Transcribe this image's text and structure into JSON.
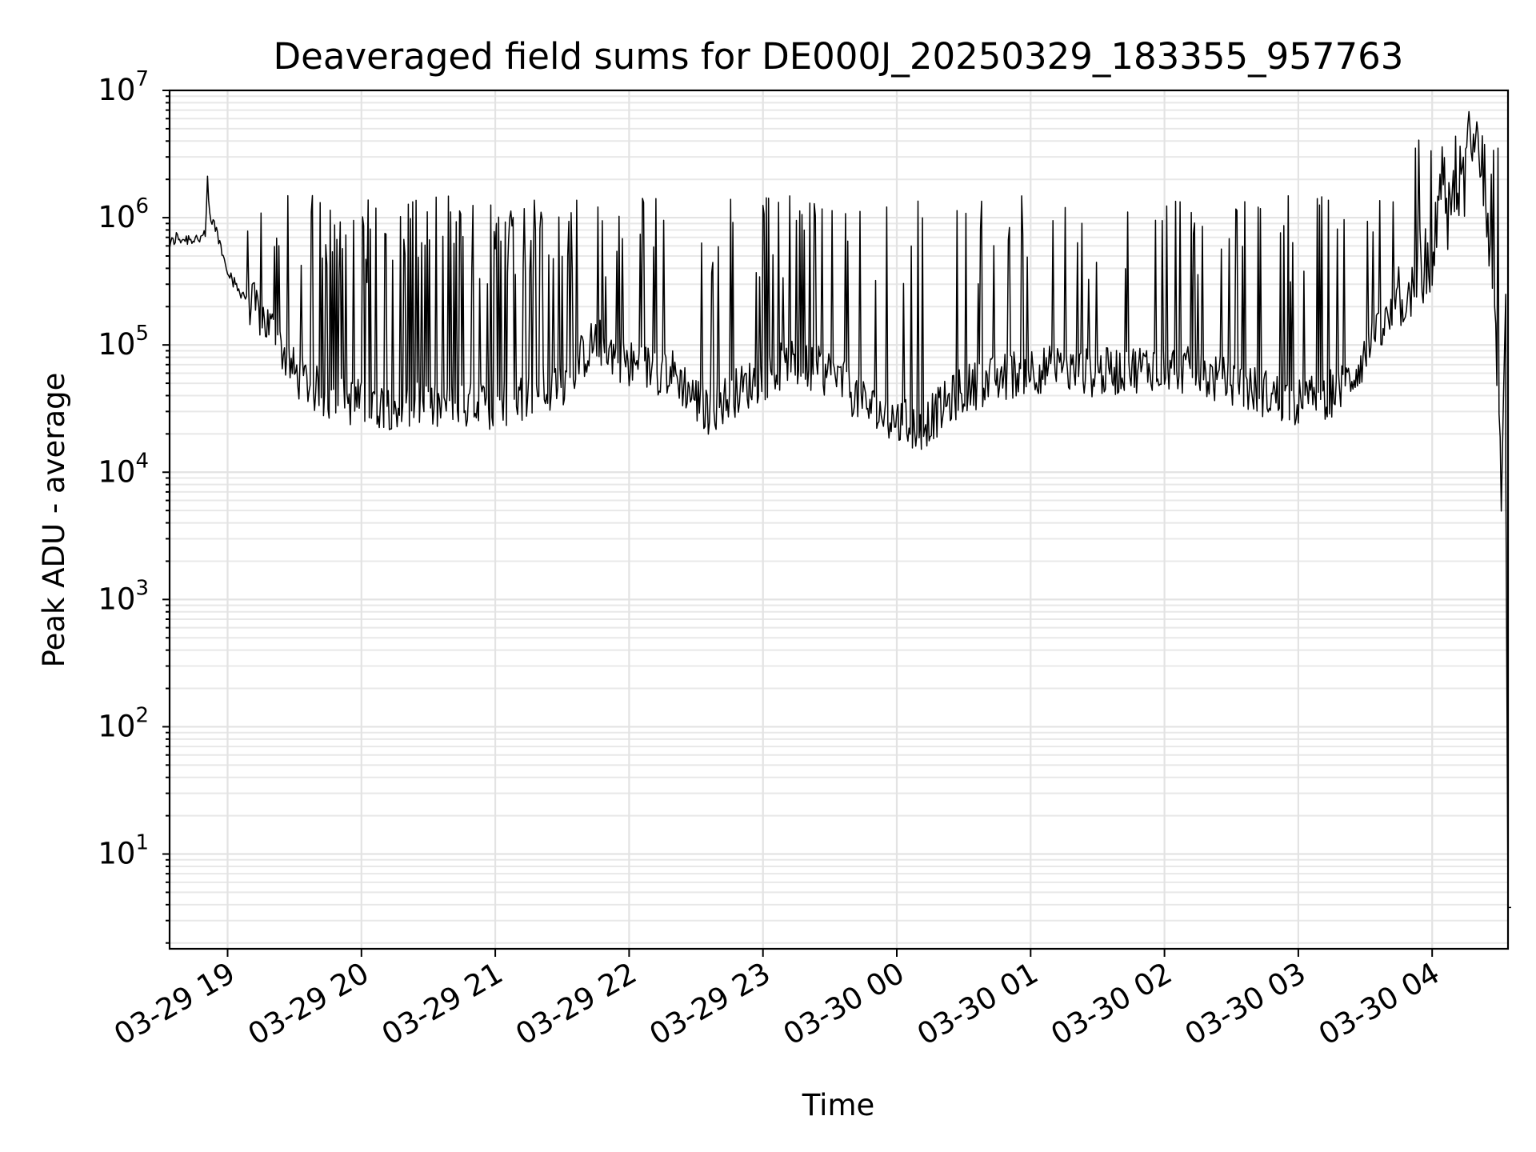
{
  "chart_data": {
    "type": "line",
    "title": "Deaveraged field sums for DE000J_20250329_183355_957763",
    "xlabel": "Time",
    "ylabel": "Peak ADU - average",
    "yscale": "log",
    "ylim": [
      1.8,
      10000000
    ],
    "xlim": [
      "2025-03-29 18:34",
      "2025-03-30 04:34"
    ],
    "grid": true,
    "legend": "none",
    "line_color": "#000000",
    "x_ticks": [
      "03-29 19",
      "03-29 20",
      "03-29 21",
      "03-29 22",
      "03-29 23",
      "03-30 00",
      "03-30 01",
      "03-30 02",
      "03-30 03",
      "03-30 04"
    ],
    "y_ticks": [
      {
        "base": "10",
        "exp": "1",
        "value": 10
      },
      {
        "base": "10",
        "exp": "2",
        "value": 100
      },
      {
        "base": "10",
        "exp": "3",
        "value": 1000
      },
      {
        "base": "10",
        "exp": "4",
        "value": 10000
      },
      {
        "base": "10",
        "exp": "5",
        "value": 100000
      },
      {
        "base": "10",
        "exp": "6",
        "value": 1000000
      },
      {
        "base": "10",
        "exp": "7",
        "value": 10000000
      }
    ],
    "series": [
      {
        "points": [
          [
            "2025-03-29 18:34",
            600000
          ],
          [
            "2025-03-29 18:37",
            700000
          ],
          [
            "2025-03-29 18:40",
            680000
          ],
          [
            "2025-03-29 18:45",
            690000
          ],
          [
            "2025-03-29 18:50",
            700000
          ],
          [
            "2025-03-29 18:51",
            1900000
          ],
          [
            "2025-03-29 18:52",
            1000000
          ],
          [
            "2025-03-29 18:55",
            800000
          ],
          [
            "2025-03-29 18:58",
            500000
          ],
          [
            "2025-03-29 19:03",
            300000
          ],
          [
            "2025-03-29 19:10",
            220000
          ],
          [
            "2025-03-29 19:20",
            130000
          ],
          [
            "2025-03-29 19:30",
            60000
          ],
          [
            "2025-03-29 19:45",
            38000
          ],
          [
            "2025-03-29 20:00",
            35000
          ],
          [
            "2025-03-29 20:30",
            32000
          ],
          [
            "2025-03-29 21:00",
            33000
          ],
          [
            "2025-03-29 21:30",
            50000
          ],
          [
            "2025-03-29 21:45",
            110000
          ],
          [
            "2025-03-29 22:00",
            70000
          ],
          [
            "2025-03-29 22:20",
            60000
          ],
          [
            "2025-03-29 22:35",
            30000
          ],
          [
            "2025-03-29 22:50",
            45000
          ],
          [
            "2025-03-29 23:10",
            70000
          ],
          [
            "2025-03-29 23:30",
            60000
          ],
          [
            "2025-03-29 23:50",
            30000
          ],
          [
            "2025-03-30 00:10",
            22000
          ],
          [
            "2025-03-30 00:30",
            45000
          ],
          [
            "2025-03-30 01:00",
            65000
          ],
          [
            "2025-03-30 01:30",
            60000
          ],
          [
            "2025-03-30 02:00",
            70000
          ],
          [
            "2025-03-30 02:30",
            50000
          ],
          [
            "2025-03-30 03:00",
            35000
          ],
          [
            "2025-03-30 03:20",
            45000
          ],
          [
            "2025-03-30 03:40",
            150000
          ],
          [
            "2025-03-30 04:00",
            400000
          ],
          [
            "2025-03-30 04:15",
            1500000
          ],
          [
            "2025-03-30 04:20",
            5800000
          ],
          [
            "2025-03-30 04:25",
            800000
          ],
          [
            "2025-03-30 04:30",
            40000
          ],
          [
            "2025-03-30 04:34",
            3.8
          ]
        ]
      }
    ]
  }
}
